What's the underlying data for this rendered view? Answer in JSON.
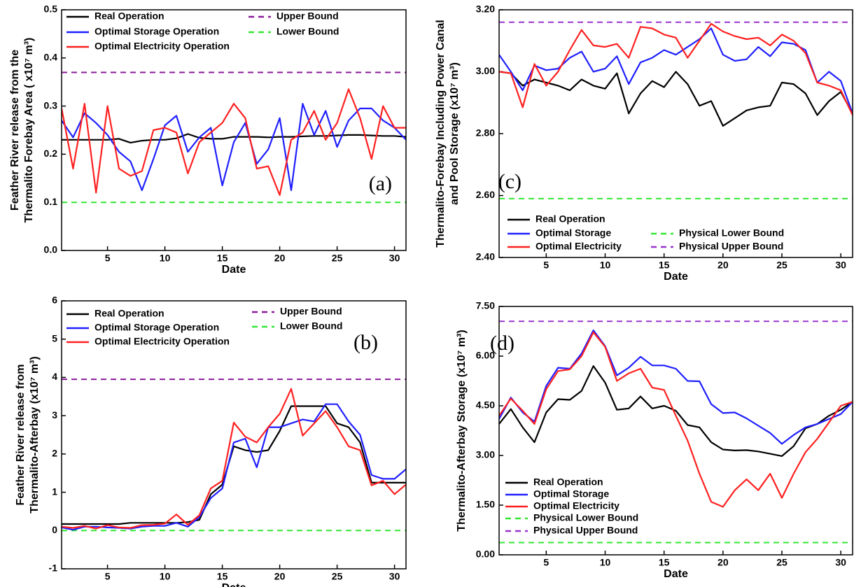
{
  "chart_data": [
    {
      "type": "line",
      "annotation": "(a)",
      "xlabel": "Date",
      "ylabel": [
        "Feather River release from the",
        "Thermalito Forebay Area ( x10⁷ m³)"
      ],
      "x": [
        1,
        2,
        3,
        4,
        5,
        6,
        7,
        8,
        9,
        10,
        11,
        12,
        13,
        14,
        15,
        16,
        17,
        18,
        19,
        20,
        21,
        22,
        23,
        24,
        25,
        26,
        27,
        28,
        29,
        30,
        31
      ],
      "xlim": [
        1,
        31
      ],
      "xticks": [
        5,
        10,
        15,
        20,
        25,
        30
      ],
      "ylim": [
        0,
        0.5
      ],
      "yticks": [
        {
          "value": 0,
          "label": "0.0"
        },
        0.1,
        0.2,
        0.3,
        0.4,
        0.5
      ],
      "series": [
        {
          "name": "Real Operation",
          "color": "#000000",
          "values": [
            0.23,
            0.23,
            0.23,
            0.23,
            0.23,
            0.232,
            0.224,
            0.228,
            0.23,
            0.23,
            0.233,
            0.242,
            0.234,
            0.232,
            0.232,
            0.236,
            0.236,
            0.236,
            0.235,
            0.236,
            0.236,
            0.237,
            0.238,
            0.238,
            0.239,
            0.24,
            0.24,
            0.239,
            0.238,
            0.238,
            0.236
          ]
        },
        {
          "name": "Optimal Storage Operation",
          "color": "#1f1fff",
          "values": [
            0.27,
            0.235,
            0.285,
            0.265,
            0.24,
            0.205,
            0.185,
            0.125,
            0.19,
            0.26,
            0.28,
            0.205,
            0.235,
            0.255,
            0.135,
            0.225,
            0.265,
            0.18,
            0.21,
            0.275,
            0.125,
            0.305,
            0.24,
            0.29,
            0.215,
            0.27,
            0.295,
            0.295,
            0.27,
            0.255,
            0.23
          ]
        },
        {
          "name": "Optimal Electricity Operation",
          "color": "#ff2020",
          "values": [
            0.295,
            0.17,
            0.305,
            0.12,
            0.3,
            0.17,
            0.155,
            0.165,
            0.25,
            0.255,
            0.245,
            0.16,
            0.225,
            0.245,
            0.265,
            0.305,
            0.275,
            0.17,
            0.175,
            0.115,
            0.23,
            0.245,
            0.29,
            0.23,
            0.265,
            0.335,
            0.275,
            0.19,
            0.3,
            0.255,
            0.255
          ]
        }
      ],
      "bounds": [
        {
          "name": "Upper Bound",
          "color": "#8b1a9a",
          "value": 0.37
        },
        {
          "name": "Lower Bound",
          "color": "#33e633",
          "value": 0.1
        }
      ]
    },
    {
      "type": "line",
      "annotation": "(b)",
      "xlabel": "Date",
      "ylabel": [
        "Feather River release from",
        "Thermalito-Afterbay (x10⁷ m³)"
      ],
      "x": [
        1,
        2,
        3,
        4,
        5,
        6,
        7,
        8,
        9,
        10,
        11,
        12,
        13,
        14,
        15,
        16,
        17,
        18,
        19,
        20,
        21,
        22,
        23,
        24,
        25,
        26,
        27,
        28,
        29,
        30,
        31
      ],
      "xlim": [
        1,
        31
      ],
      "xticks": [
        5,
        10,
        15,
        20,
        25,
        30
      ],
      "ylim": [
        -1,
        6
      ],
      "yticks": [
        -1,
        0,
        1,
        2,
        3,
        4,
        5,
        6
      ],
      "series": [
        {
          "name": "Real Operation",
          "color": "#000000",
          "values": [
            0.17,
            0.17,
            0.17,
            0.17,
            0.17,
            0.17,
            0.2,
            0.2,
            0.2,
            0.2,
            0.2,
            0.22,
            0.28,
            0.95,
            1.2,
            2.2,
            2.1,
            2.05,
            2.1,
            2.6,
            3.25,
            3.25,
            3.25,
            3.25,
            2.8,
            2.7,
            2.3,
            1.25,
            1.25,
            1.25,
            1.25
          ]
        },
        {
          "name": "Optimal Storage Operation",
          "color": "#1f1fff",
          "values": [
            0.08,
            0.02,
            0.1,
            0.1,
            0.08,
            0.07,
            0.05,
            0.1,
            0.12,
            0.12,
            0.2,
            0.1,
            0.35,
            0.85,
            1.1,
            2.3,
            2.4,
            1.65,
            2.7,
            2.7,
            2.8,
            2.9,
            2.85,
            3.3,
            3.3,
            2.85,
            2.5,
            1.45,
            1.35,
            1.35,
            1.6
          ]
        },
        {
          "name": "Optimal Electricity Operation",
          "color": "#ff2020",
          "values": [
            0.1,
            0.07,
            0.12,
            0.05,
            0.14,
            0.08,
            0.07,
            0.14,
            0.15,
            0.18,
            0.42,
            0.15,
            0.4,
            1.1,
            1.3,
            2.82,
            2.45,
            2.3,
            2.7,
            3.05,
            3.7,
            2.48,
            2.8,
            3.12,
            2.7,
            2.2,
            2.1,
            1.18,
            1.3,
            0.95,
            1.2
          ]
        }
      ],
      "bounds": [
        {
          "name": "Upper Bound",
          "color": "#8b1a9a",
          "value": 3.95
        },
        {
          "name": "Lower Bound",
          "color": "#33e633",
          "value": 0
        }
      ]
    },
    {
      "type": "line",
      "annotation": "(c)",
      "xlabel": "Date",
      "ylabel": [
        "Thermalito-Forebay Including Power Canal",
        "and Pool Storage (x10⁷ m³)"
      ],
      "x": [
        1,
        2,
        3,
        4,
        5,
        6,
        7,
        8,
        9,
        10,
        11,
        12,
        13,
        14,
        15,
        16,
        17,
        18,
        19,
        20,
        21,
        22,
        23,
        24,
        25,
        26,
        27,
        28,
        29,
        30,
        31
      ],
      "xlim": [
        1,
        31
      ],
      "xticks": [
        5,
        10,
        15,
        20,
        25,
        30
      ],
      "ylim": [
        2.4,
        3.2
      ],
      "yticks": [
        {
          "value": 2.4,
          "label": "2.40"
        },
        {
          "value": 2.6,
          "label": "2.60"
        },
        {
          "value": 2.8,
          "label": "2.80"
        },
        {
          "value": 3.0,
          "label": "3.00"
        },
        {
          "value": 3.2,
          "label": "3.20"
        }
      ],
      "series": [
        {
          "name": "Real Operation",
          "color": "#000000",
          "values": [
            3.0,
            2.995,
            2.955,
            2.975,
            2.965,
            2.955,
            2.94,
            2.975,
            2.955,
            2.945,
            2.995,
            2.865,
            2.93,
            2.97,
            2.95,
            3.0,
            2.96,
            2.89,
            2.905,
            2.825,
            2.85,
            2.875,
            2.885,
            2.89,
            2.965,
            2.96,
            2.93,
            2.86,
            2.905,
            2.935,
            2.865
          ]
        },
        {
          "name": "Optimal Storage",
          "color": "#1f1fff",
          "values": [
            3.055,
            3.0,
            2.94,
            3.02,
            3.005,
            3.01,
            3.045,
            3.065,
            3.0,
            3.01,
            3.05,
            2.96,
            3.03,
            3.045,
            3.07,
            3.055,
            3.08,
            3.105,
            3.14,
            3.055,
            3.035,
            3.04,
            3.08,
            3.05,
            3.095,
            3.09,
            3.07,
            2.965,
            3.0,
            2.97,
            2.865
          ]
        },
        {
          "name": "Optimal Electricity",
          "color": "#ff2020",
          "values": [
            3.0,
            2.995,
            2.885,
            3.025,
            2.955,
            3.0,
            3.07,
            3.135,
            3.085,
            3.08,
            3.09,
            3.045,
            3.145,
            3.14,
            3.12,
            3.11,
            3.045,
            3.1,
            3.155,
            3.13,
            3.115,
            3.105,
            3.11,
            3.085,
            3.12,
            3.1,
            3.06,
            2.965,
            2.955,
            2.94,
            2.86
          ]
        }
      ],
      "bounds": [
        {
          "name": "Physical Lower Bound",
          "color": "#33e633",
          "value": 2.59
        },
        {
          "name": "Physical Upper Bound",
          "color": "#9933cc",
          "value": 3.16
        }
      ]
    },
    {
      "type": "line",
      "annotation": "(d)",
      "xlabel": "Date",
      "ylabel": [
        "Thermalito-Afterbay Storage (x10⁷ m³)"
      ],
      "x": [
        1,
        2,
        3,
        4,
        5,
        6,
        7,
        8,
        9,
        10,
        11,
        12,
        13,
        14,
        15,
        16,
        17,
        18,
        19,
        20,
        21,
        22,
        23,
        24,
        25,
        26,
        27,
        28,
        29,
        30,
        31
      ],
      "xlim": [
        1,
        31
      ],
      "xticks": [
        5,
        10,
        15,
        20,
        25,
        30
      ],
      "ylim": [
        0,
        7.5
      ],
      "yticks": [
        {
          "value": 0,
          "label": "0.00"
        },
        {
          "value": 1.5,
          "label": "1.50"
        },
        {
          "value": 3,
          "label": "3.00"
        },
        {
          "value": 4.5,
          "label": "4.50"
        },
        {
          "value": 6,
          "label": "6.00"
        },
        {
          "value": 7.5,
          "label": "7.50"
        }
      ],
      "series": [
        {
          "name": "Real Operation",
          "color": "#000000",
          "values": [
            3.95,
            4.4,
            3.85,
            3.4,
            4.3,
            4.7,
            4.68,
            4.95,
            5.7,
            5.2,
            4.38,
            4.42,
            4.78,
            4.42,
            4.5,
            4.35,
            3.92,
            3.85,
            3.4,
            3.18,
            3.15,
            3.16,
            3.12,
            3.05,
            2.98,
            3.28,
            3.82,
            3.95,
            4.2,
            4.38,
            4.62
          ]
        },
        {
          "name": "Optimal Storage",
          "color": "#1f1fff",
          "values": [
            4.1,
            4.75,
            4.3,
            4.02,
            5.1,
            5.65,
            5.62,
            6.08,
            6.78,
            6.3,
            5.42,
            5.65,
            5.98,
            5.72,
            5.72,
            5.62,
            5.25,
            5.24,
            4.55,
            4.28,
            4.3,
            4.12,
            3.9,
            3.68,
            3.35,
            3.62,
            3.85,
            3.95,
            4.1,
            4.25,
            4.62
          ]
        },
        {
          "name": "Optimal Electricity",
          "color": "#ff2020",
          "values": [
            4.2,
            4.72,
            4.35,
            3.95,
            5.0,
            5.55,
            5.6,
            6.0,
            6.72,
            6.28,
            5.25,
            5.48,
            5.62,
            5.05,
            4.98,
            4.2,
            3.45,
            2.45,
            1.6,
            1.45,
            1.95,
            2.28,
            1.95,
            2.45,
            1.72,
            2.45,
            3.1,
            3.5,
            4.0,
            4.5,
            4.62
          ]
        }
      ],
      "bounds": [
        {
          "name": "Physical Lower Bound",
          "color": "#33e633",
          "value": 0.37
        },
        {
          "name": "Physical Upper Bound",
          "color": "#9933cc",
          "value": 7.05
        }
      ]
    }
  ]
}
